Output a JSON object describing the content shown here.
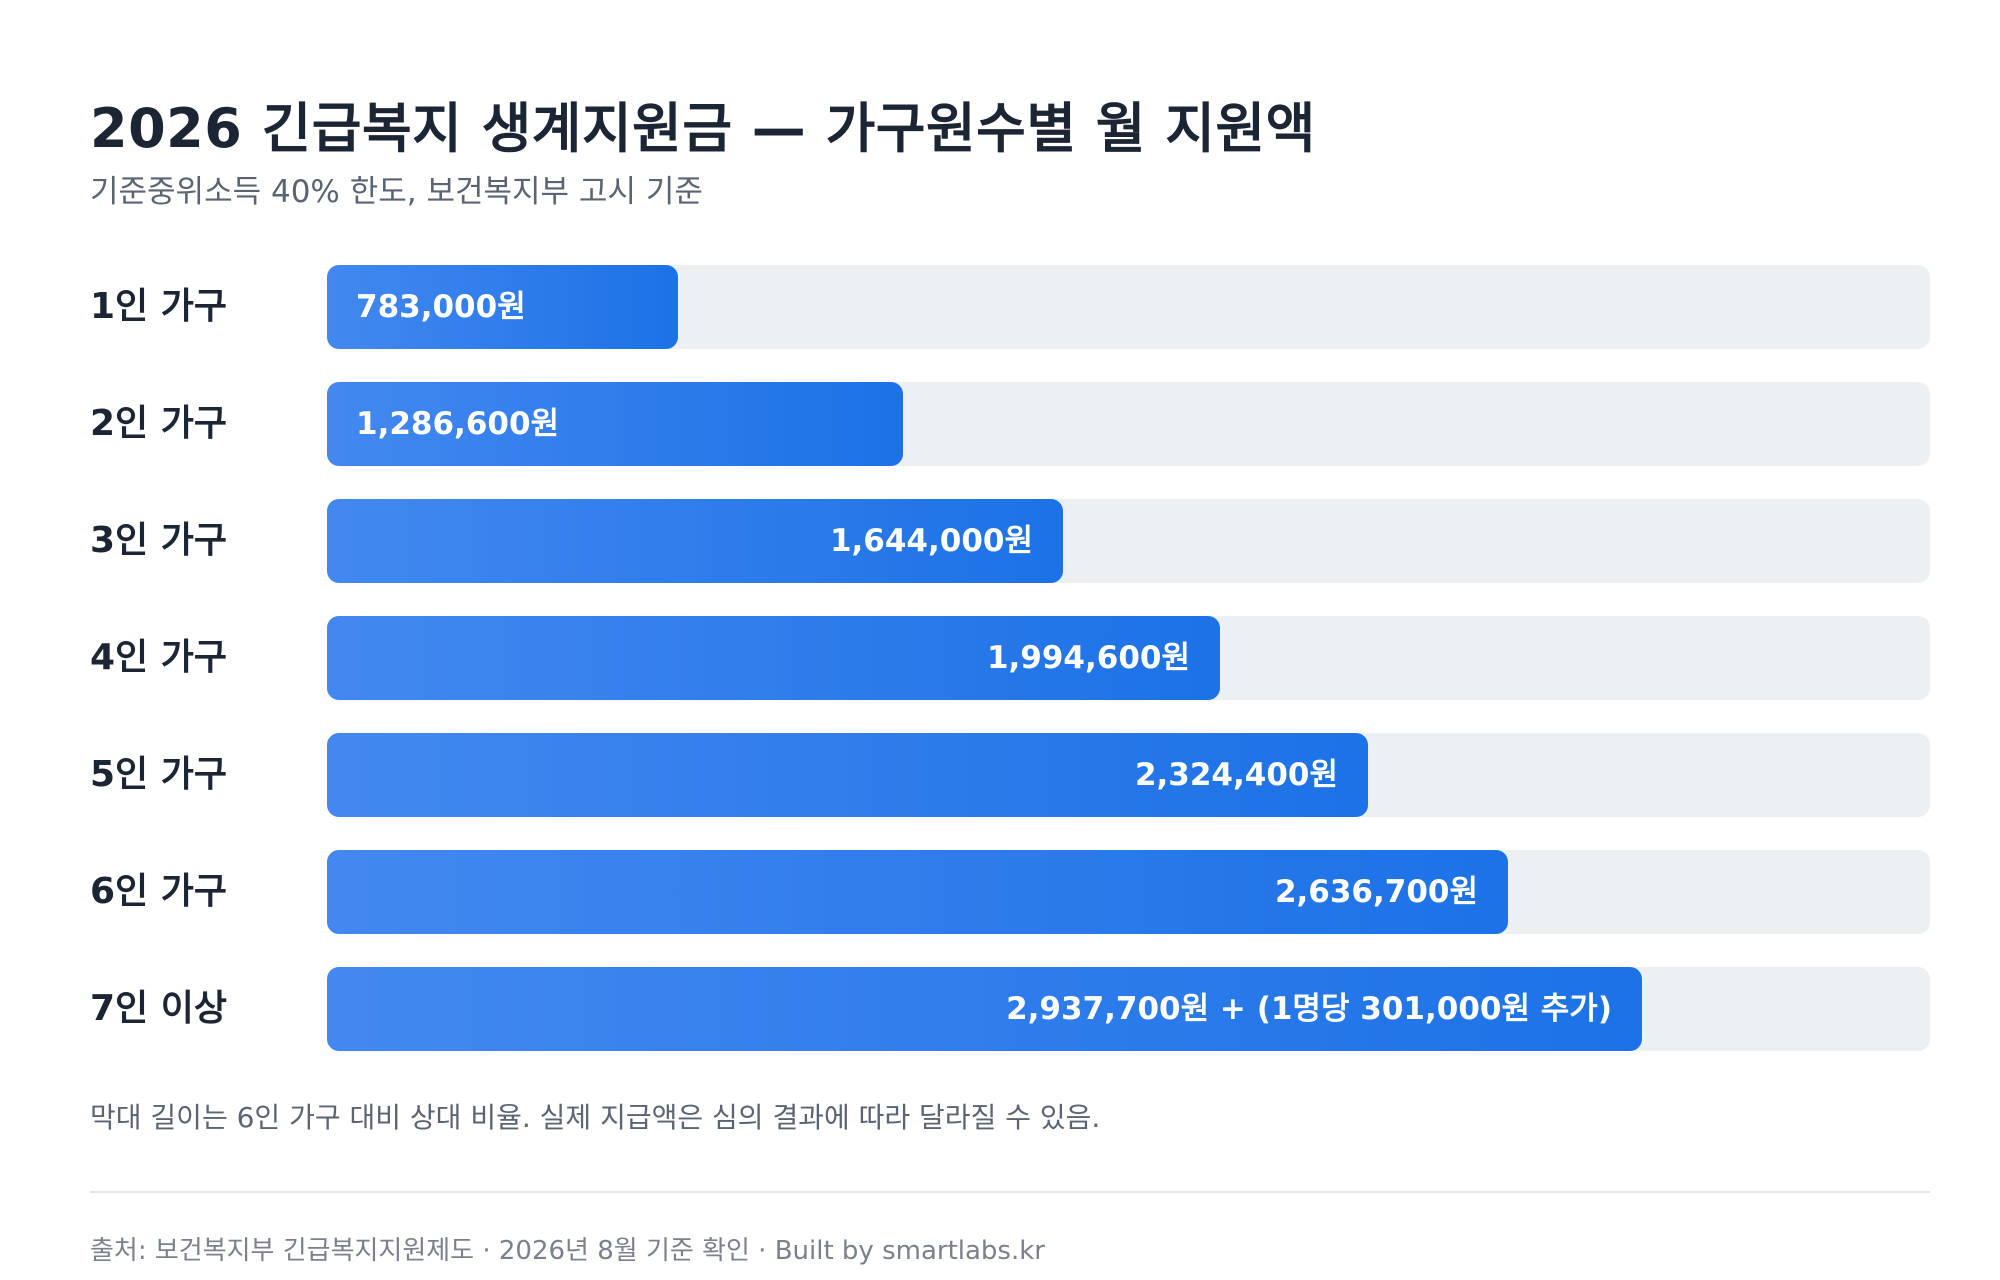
{
  "title": "2026 긴급복지 생계지원금 — 가구원수별 월 지원액",
  "subtitle": "기준중위소득 40% 한도, 보건복지부 고시 기준",
  "chart_data": {
    "type": "bar",
    "orientation": "horizontal",
    "categories": [
      "1인 가구",
      "2인 가구",
      "3인 가구",
      "4인 가구",
      "5인 가구",
      "6인 가구",
      "7인 이상"
    ],
    "values": [
      783000,
      1286600,
      1644000,
      1994600,
      2324400,
      2636700,
      2937700
    ],
    "value_labels": [
      "783,000원",
      "1,286,600원",
      "1,644,000원",
      "1,994,600원",
      "2,324,400원",
      "2,636,700원",
      "2,937,700원 + (1명당 301,000원 추가)"
    ],
    "unit": "원",
    "xlim": [
      0,
      3580000
    ],
    "colors": {
      "bar_start": "#4388f0",
      "bar_end": "#1c72e6",
      "track": "#edf0f3"
    }
  },
  "footnote": "막대 길이는 6인 가구 대비 상대 비율. 실제 지급액은 심의 결과에 따라 달라질 수 있음.",
  "source": "출처: 보건복지부 긴급복지지원제도 · 2026년 8월 기준 확인 · Built by smartlabs.kr"
}
